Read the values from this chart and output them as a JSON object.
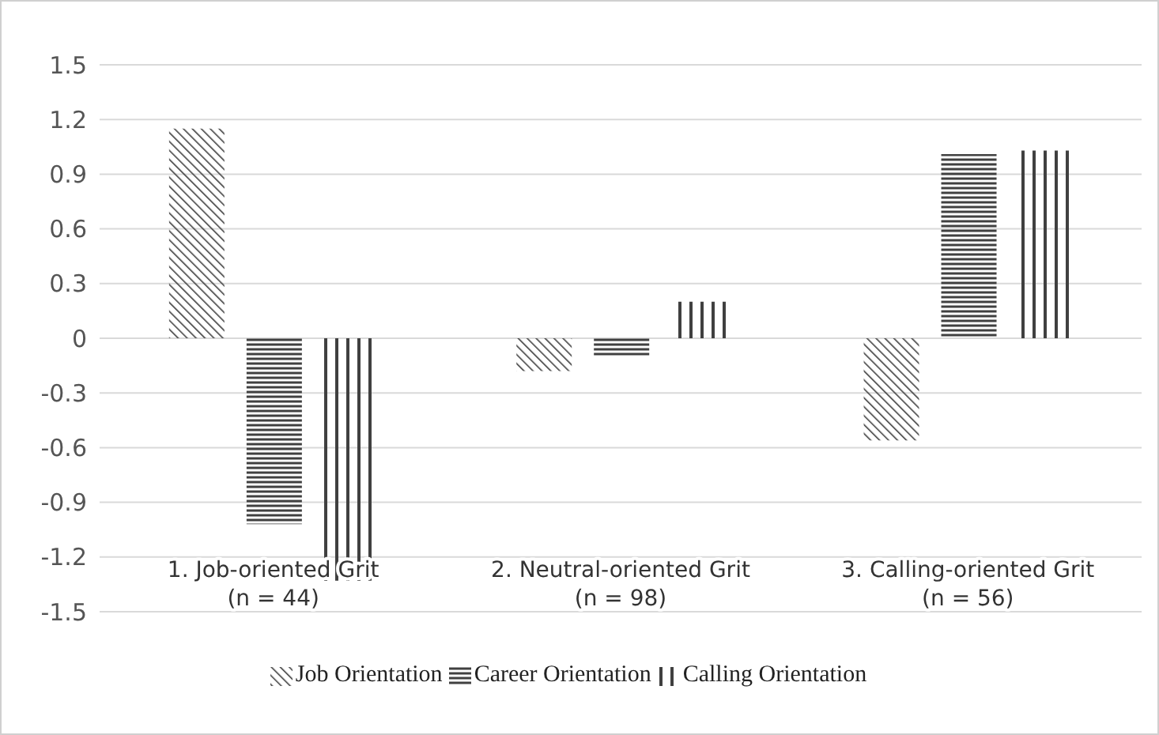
{
  "chart_data": {
    "type": "bar",
    "categories": [
      "1. Job-oriented Grit\n(n = 44)",
      "2. Neutral-oriented Grit\n(n = 98)",
      "3. Calling-oriented Grit\n(n = 56)"
    ],
    "series": [
      {
        "name": "Job Orientation",
        "color": "#404040",
        "values": [
          1.15,
          -0.18,
          -0.56
        ]
      },
      {
        "name": "Career Orientation",
        "color": "#404040",
        "values": [
          -1.02,
          -0.1,
          1.01
        ]
      },
      {
        "name": "Calling Orientation",
        "color": "#404040",
        "values": [
          -1.33,
          0.2,
          1.03
        ]
      }
    ],
    "ylim": [
      -1.5,
      1.5
    ],
    "yticks": [
      -1.5,
      -1.2,
      -0.9,
      -0.6,
      -0.3,
      0,
      0.3,
      0.6,
      0.9,
      1.2,
      1.5
    ],
    "grid": "y",
    "legend": "bottom"
  }
}
